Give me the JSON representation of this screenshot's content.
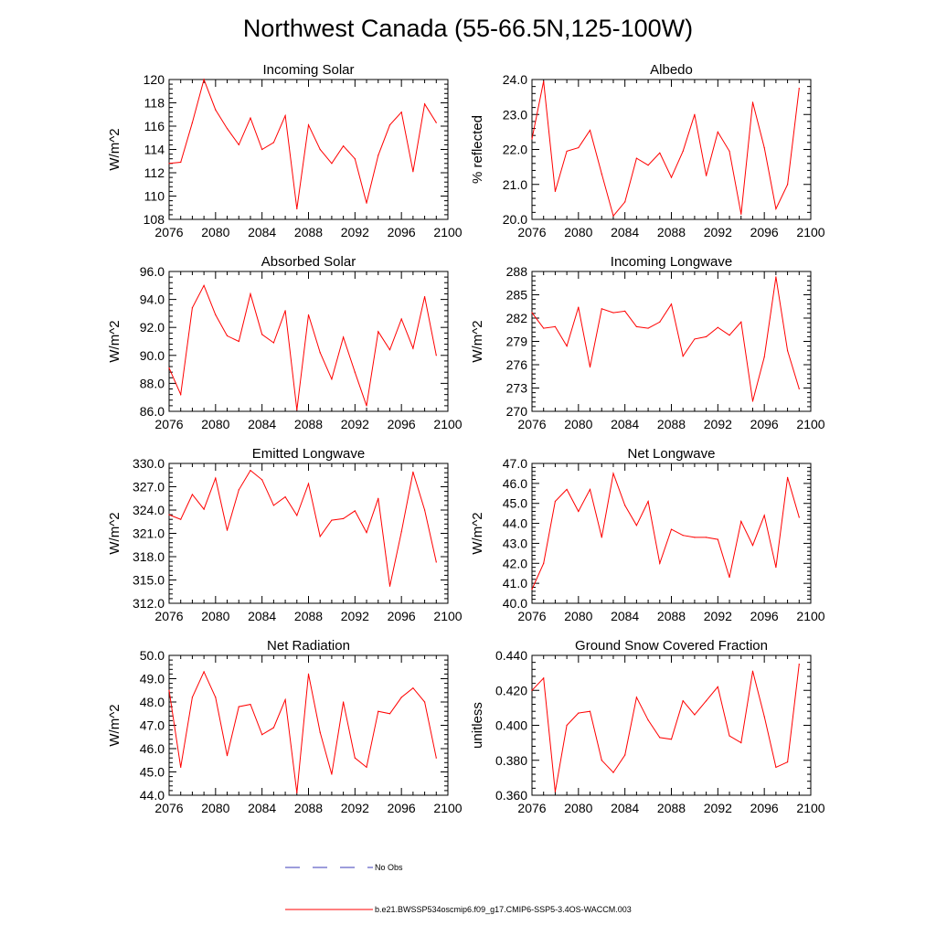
{
  "figure_title": "Northwest Canada (55-66.5N,125-100W)",
  "colors": {
    "series": "#ff0000",
    "obs": "#3b3bb8",
    "axis": "#000000"
  },
  "legend": {
    "obs_label": "No Obs",
    "model_label": "b.e21.BWSSP534oscmip6.f09_g17.CMIP6-SSP5-3.4OS-WACCM.003"
  },
  "chart_data": [
    {
      "type": "line",
      "title": "Incoming Solar",
      "ylabel": "W/m^2",
      "xlabel": "",
      "xlim": [
        2076,
        2100
      ],
      "ylim": [
        108,
        120
      ],
      "xticks": [
        "2076",
        "2080",
        "2084",
        "2088",
        "2092",
        "2096",
        "2100"
      ],
      "yticks": [
        "108",
        "110",
        "112",
        "114",
        "116",
        "118",
        "120"
      ],
      "series": [
        {
          "name": "b.e21.BWSSP534oscmip6.f09_g17.CMIP6-SSP5-3.4OS-WACCM.003",
          "x": [
            2076,
            2077,
            2078,
            2079,
            2080,
            2081,
            2082,
            2083,
            2084,
            2085,
            2086,
            2087,
            2088,
            2089,
            2090,
            2091,
            2092,
            2093,
            2094,
            2095,
            2096,
            2097,
            2098,
            2099
          ],
          "values": [
            112.8,
            112.9,
            116.3,
            120.0,
            117.4,
            115.8,
            114.4,
            116.7,
            114.0,
            114.6,
            116.9,
            108.9,
            116.1,
            114.0,
            112.8,
            114.3,
            113.2,
            109.4,
            113.5,
            116.1,
            117.2,
            112.1,
            117.9,
            116.3
          ]
        }
      ]
    },
    {
      "type": "line",
      "title": "Albedo",
      "ylabel": "% reflected",
      "xlabel": "",
      "xlim": [
        2076,
        2100
      ],
      "ylim": [
        20.0,
        24.0
      ],
      "xticks": [
        "2076",
        "2080",
        "2084",
        "2088",
        "2092",
        "2096",
        "2100"
      ],
      "yticks": [
        "20.0",
        "21.0",
        "22.0",
        "23.0",
        "24.0"
      ],
      "series": [
        {
          "name": "b.e21.BWSSP534oscmip6.f09_g17.CMIP6-SSP5-3.4OS-WACCM.003",
          "x": [
            2076,
            2077,
            2078,
            2079,
            2080,
            2081,
            2082,
            2083,
            2084,
            2085,
            2086,
            2087,
            2088,
            2089,
            2090,
            2091,
            2092,
            2093,
            2094,
            2095,
            2096,
            2097,
            2098,
            2099
          ],
          "values": [
            22.3,
            23.95,
            20.8,
            21.95,
            22.05,
            22.55,
            21.3,
            20.1,
            20.5,
            21.75,
            21.55,
            21.9,
            21.2,
            21.95,
            23.0,
            21.25,
            22.5,
            21.95,
            20.15,
            23.35,
            22.05,
            20.3,
            21.0,
            23.75
          ]
        }
      ]
    },
    {
      "type": "line",
      "title": "Absorbed Solar",
      "ylabel": "W/m^2",
      "xlabel": "",
      "xlim": [
        2076,
        2100
      ],
      "ylim": [
        86.0,
        96.0
      ],
      "xticks": [
        "2076",
        "2080",
        "2084",
        "2088",
        "2092",
        "2096",
        "2100"
      ],
      "yticks": [
        "86.0",
        "88.0",
        "90.0",
        "92.0",
        "94.0",
        "96.0"
      ],
      "series": [
        {
          "name": "b.e21.BWSSP534oscmip6.f09_g17.CMIP6-SSP5-3.4OS-WACCM.003",
          "x": [
            2076,
            2077,
            2078,
            2079,
            2080,
            2081,
            2082,
            2083,
            2084,
            2085,
            2086,
            2087,
            2088,
            2089,
            2090,
            2091,
            2092,
            2093,
            2094,
            2095,
            2096,
            2097,
            2098,
            2099
          ],
          "values": [
            89.1,
            87.2,
            93.4,
            95.0,
            92.9,
            91.4,
            91.0,
            94.4,
            91.5,
            90.9,
            93.2,
            86.1,
            92.9,
            90.2,
            88.3,
            91.3,
            88.8,
            86.4,
            91.7,
            90.4,
            92.6,
            90.5,
            94.2,
            90.0
          ]
        }
      ]
    },
    {
      "type": "line",
      "title": "Incoming Longwave",
      "ylabel": "W/m^2",
      "xlabel": "",
      "xlim": [
        2076,
        2100
      ],
      "ylim": [
        270,
        288
      ],
      "xticks": [
        "2076",
        "2080",
        "2084",
        "2088",
        "2092",
        "2096",
        "2100"
      ],
      "yticks": [
        "270",
        "273",
        "276",
        "279",
        "282",
        "285",
        "288"
      ],
      "series": [
        {
          "name": "b.e21.BWSSP534oscmip6.f09_g17.CMIP6-SSP5-3.4OS-WACCM.003",
          "x": [
            2076,
            2077,
            2078,
            2079,
            2080,
            2081,
            2082,
            2083,
            2084,
            2085,
            2086,
            2087,
            2088,
            2089,
            2090,
            2091,
            2092,
            2093,
            2094,
            2095,
            2096,
            2097,
            2098,
            2099
          ],
          "values": [
            282.7,
            280.7,
            280.9,
            278.4,
            283.4,
            275.7,
            283.2,
            282.7,
            282.9,
            280.9,
            280.7,
            281.5,
            283.8,
            277.1,
            279.3,
            279.6,
            280.8,
            279.8,
            281.5,
            271.3,
            277.0,
            287.3,
            277.8,
            272.9
          ]
        }
      ]
    },
    {
      "type": "line",
      "title": "Emitted Longwave",
      "ylabel": "W/m^2",
      "xlabel": "",
      "xlim": [
        2076,
        2100
      ],
      "ylim": [
        312.0,
        330.0
      ],
      "xticks": [
        "2076",
        "2080",
        "2084",
        "2088",
        "2092",
        "2096",
        "2100"
      ],
      "yticks": [
        "312.0",
        "315.0",
        "318.0",
        "321.0",
        "324.0",
        "327.0",
        "330.0"
      ],
      "series": [
        {
          "name": "b.e21.BWSSP534oscmip6.f09_g17.CMIP6-SSP5-3.4OS-WACCM.003",
          "x": [
            2076,
            2077,
            2078,
            2079,
            2080,
            2081,
            2082,
            2083,
            2084,
            2085,
            2086,
            2087,
            2088,
            2089,
            2090,
            2091,
            2092,
            2093,
            2094,
            2095,
            2096,
            2097,
            2098,
            2099
          ],
          "values": [
            323.4,
            322.8,
            326.0,
            324.1,
            328.1,
            321.4,
            326.6,
            329.1,
            327.9,
            324.6,
            325.7,
            323.3,
            327.4,
            320.6,
            322.7,
            322.9,
            323.9,
            321.1,
            325.5,
            314.2,
            321.2,
            328.9,
            324.0,
            317.3
          ]
        }
      ]
    },
    {
      "type": "line",
      "title": "Net Longwave",
      "ylabel": "W/m^2",
      "xlabel": "",
      "xlim": [
        2076,
        2100
      ],
      "ylim": [
        40.0,
        47.0
      ],
      "xticks": [
        "2076",
        "2080",
        "2084",
        "2088",
        "2092",
        "2096",
        "2100"
      ],
      "yticks": [
        "40.0",
        "41.0",
        "42.0",
        "43.0",
        "44.0",
        "45.0",
        "46.0",
        "47.0"
      ],
      "series": [
        {
          "name": "b.e21.BWSSP534oscmip6.f09_g17.CMIP6-SSP5-3.4OS-WACCM.003",
          "x": [
            2076,
            2077,
            2078,
            2079,
            2080,
            2081,
            2082,
            2083,
            2084,
            2085,
            2086,
            2087,
            2088,
            2089,
            2090,
            2091,
            2092,
            2093,
            2094,
            2095,
            2096,
            2097,
            2098,
            2099
          ],
          "values": [
            40.7,
            42.0,
            45.1,
            45.7,
            44.6,
            45.7,
            43.3,
            46.5,
            44.9,
            43.9,
            45.1,
            42.0,
            43.7,
            43.4,
            43.3,
            43.3,
            43.2,
            41.3,
            44.1,
            42.9,
            44.4,
            41.8,
            46.3,
            44.3
          ]
        }
      ]
    },
    {
      "type": "line",
      "title": "Net Radiation",
      "ylabel": "W/m^2",
      "xlabel": "",
      "xlim": [
        2076,
        2100
      ],
      "ylim": [
        44.0,
        50.0
      ],
      "xticks": [
        "2076",
        "2080",
        "2084",
        "2088",
        "2092",
        "2096",
        "2100"
      ],
      "yticks": [
        "44.0",
        "45.0",
        "46.0",
        "47.0",
        "48.0",
        "49.0",
        "50.0"
      ],
      "series": [
        {
          "name": "b.e21.BWSSP534oscmip6.f09_g17.CMIP6-SSP5-3.4OS-WACCM.003",
          "x": [
            2076,
            2077,
            2078,
            2079,
            2080,
            2081,
            2082,
            2083,
            2084,
            2085,
            2086,
            2087,
            2088,
            2089,
            2090,
            2091,
            2092,
            2093,
            2094,
            2095,
            2096,
            2097,
            2098,
            2099
          ],
          "values": [
            48.5,
            45.2,
            48.2,
            49.3,
            48.2,
            45.7,
            47.8,
            47.9,
            46.6,
            46.9,
            48.1,
            44.1,
            49.2,
            46.7,
            44.9,
            48.0,
            45.6,
            45.2,
            47.6,
            47.5,
            48.2,
            48.6,
            48.0,
            45.6
          ]
        }
      ]
    },
    {
      "type": "line",
      "title": "Ground Snow Covered Fraction",
      "ylabel": "unitless",
      "xlabel": "",
      "xlim": [
        2076,
        2100
      ],
      "ylim": [
        0.36,
        0.44
      ],
      "xticks": [
        "2076",
        "2080",
        "2084",
        "2088",
        "2092",
        "2096",
        "2100"
      ],
      "yticks": [
        "0.360",
        "0.380",
        "0.400",
        "0.420",
        "0.440"
      ],
      "series": [
        {
          "name": "b.e21.BWSSP534oscmip6.f09_g17.CMIP6-SSP5-3.4OS-WACCM.003",
          "x": [
            2076,
            2077,
            2078,
            2079,
            2080,
            2081,
            2082,
            2083,
            2084,
            2085,
            2086,
            2087,
            2088,
            2089,
            2090,
            2091,
            2092,
            2093,
            2094,
            2095,
            2096,
            2097,
            2098,
            2099
          ],
          "values": [
            0.42,
            0.427,
            0.362,
            0.4,
            0.407,
            0.408,
            0.38,
            0.373,
            0.383,
            0.416,
            0.403,
            0.393,
            0.392,
            0.414,
            0.406,
            0.414,
            0.422,
            0.394,
            0.39,
            0.431,
            0.405,
            0.376,
            0.379,
            0.435
          ]
        }
      ]
    }
  ]
}
